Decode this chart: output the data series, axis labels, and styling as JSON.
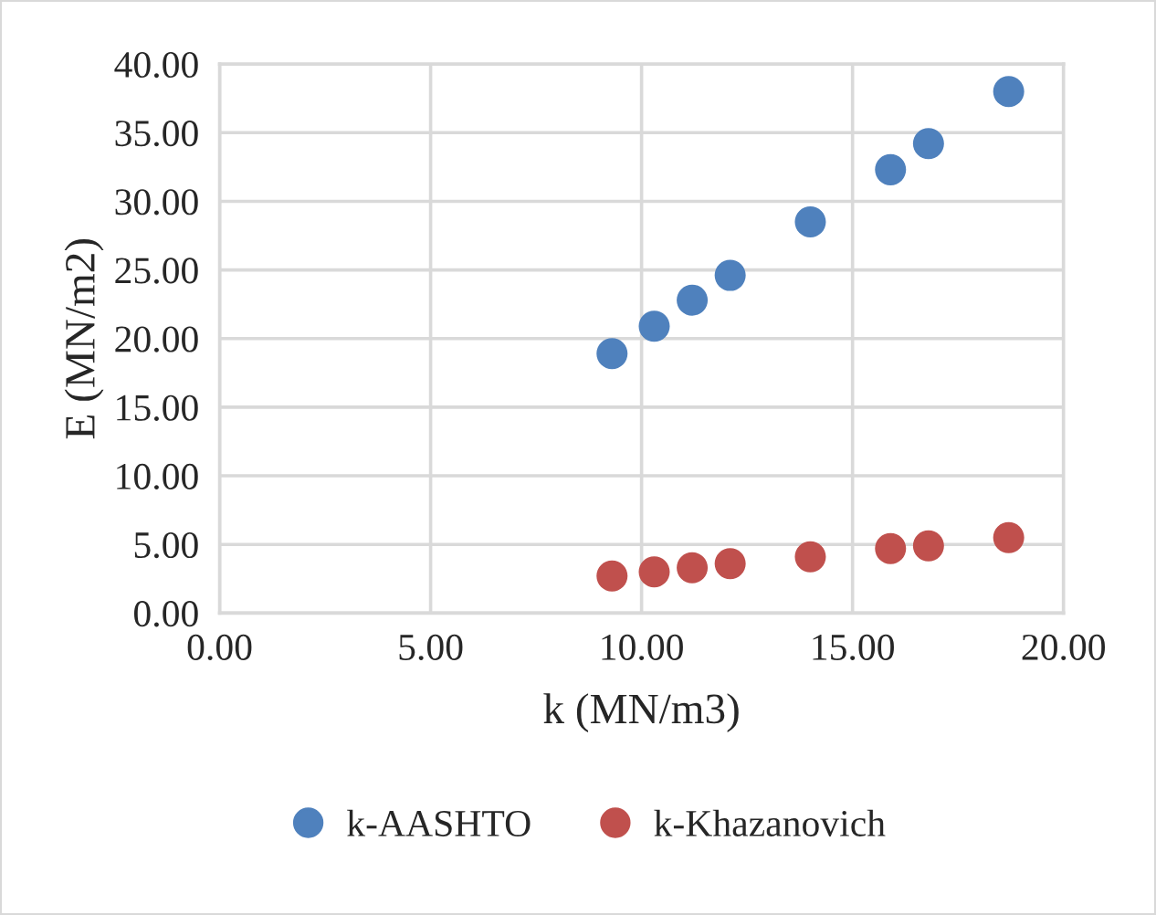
{
  "chart_data": {
    "type": "scatter",
    "xlabel": "k (MN/m3)",
    "ylabel": "E (MN/m2)",
    "x": [
      9.3,
      10.3,
      11.2,
      12.1,
      14.0,
      15.9,
      16.8,
      18.7
    ],
    "series": [
      {
        "name": "k-AASHTO",
        "color": "#4f81bd",
        "values": [
          18.9,
          20.9,
          22.8,
          24.6,
          28.5,
          32.3,
          34.2,
          38.0
        ]
      },
      {
        "name": "k-Khazanovich",
        "color": "#c0504d",
        "values": [
          2.7,
          3.0,
          3.3,
          3.6,
          4.1,
          4.7,
          4.9,
          5.5
        ]
      }
    ],
    "xlim": [
      0,
      20
    ],
    "xticks": [
      {
        "value": 0,
        "label": "0.00"
      },
      {
        "value": 5,
        "label": "5.00"
      },
      {
        "value": 10,
        "label": "10.00"
      },
      {
        "value": 15,
        "label": "15.00"
      },
      {
        "value": 20,
        "label": "20.00"
      }
    ],
    "ylim": [
      0,
      40
    ],
    "yticks": [
      {
        "value": 0,
        "label": "0.00"
      },
      {
        "value": 5,
        "label": "5.00"
      },
      {
        "value": 10,
        "label": "10.00"
      },
      {
        "value": 15,
        "label": "15.00"
      },
      {
        "value": 20,
        "label": "20.00"
      },
      {
        "value": 25,
        "label": "25.00"
      },
      {
        "value": 30,
        "label": "30.00"
      },
      {
        "value": 35,
        "label": "35.00"
      },
      {
        "value": 40,
        "label": "40.00"
      }
    ],
    "grid": true,
    "legend": "bottom",
    "marker": "circle"
  }
}
